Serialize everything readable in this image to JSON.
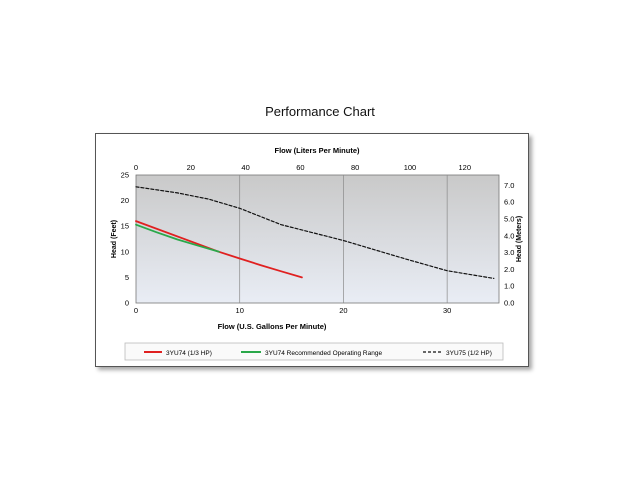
{
  "title": "Performance Chart",
  "chart_data": {
    "type": "line",
    "xlabel": "Flow (U.S. Gallons Per Minute)",
    "x2label": "Flow (Liters Per Minute)",
    "ylabel": "Head (Feet)",
    "y2label": "Head (Meters)",
    "xlim": [
      0,
      35
    ],
    "x2lim": [
      0,
      132.5
    ],
    "ylim": [
      0,
      25
    ],
    "y2lim": [
      0,
      7.62
    ],
    "xticks": [
      "0",
      "10",
      "20",
      "30"
    ],
    "xtick_values": [
      0,
      10,
      20,
      30
    ],
    "x2ticks": [
      "0",
      "20",
      "40",
      "60",
      "80",
      "100",
      "120"
    ],
    "x2tick_values": [
      0,
      20,
      40,
      60,
      80,
      100,
      120
    ],
    "yticks": [
      "0",
      "5",
      "10",
      "15",
      "20",
      "25"
    ],
    "ytick_values": [
      0,
      5,
      10,
      15,
      20,
      25
    ],
    "y2ticks": [
      "0.0",
      "1.0",
      "2.0",
      "3.0",
      "4.0",
      "5.0",
      "6.0",
      "7.0"
    ],
    "y2tick_values": [
      0,
      1,
      2,
      3,
      4,
      5,
      6,
      7
    ],
    "grid": "vertical",
    "legend_position": "bottom",
    "series": [
      {
        "name": "3YU74 (1/3 HP)",
        "color": "#e02020",
        "style": "solid",
        "x": [
          0,
          8,
          10,
          12,
          14,
          16
        ],
        "y": [
          16,
          10,
          8.7,
          7.4,
          6.2,
          5
        ]
      },
      {
        "name": "3YU74 Recommended Operating Range",
        "color": "#2aa84a",
        "style": "solid",
        "x": [
          0,
          2,
          4,
          6,
          8
        ],
        "y": [
          15.3,
          13.8,
          12.4,
          11.2,
          10
        ]
      },
      {
        "name": "3YU75 (1/2 HP)",
        "color": "#111111",
        "style": "dashed",
        "x": [
          0,
          4,
          7,
          10,
          14,
          20,
          26,
          30,
          34.5
        ],
        "y": [
          22.7,
          21.5,
          20.3,
          18.5,
          15.3,
          12.2,
          8.6,
          6.3,
          4.8
        ]
      }
    ]
  }
}
